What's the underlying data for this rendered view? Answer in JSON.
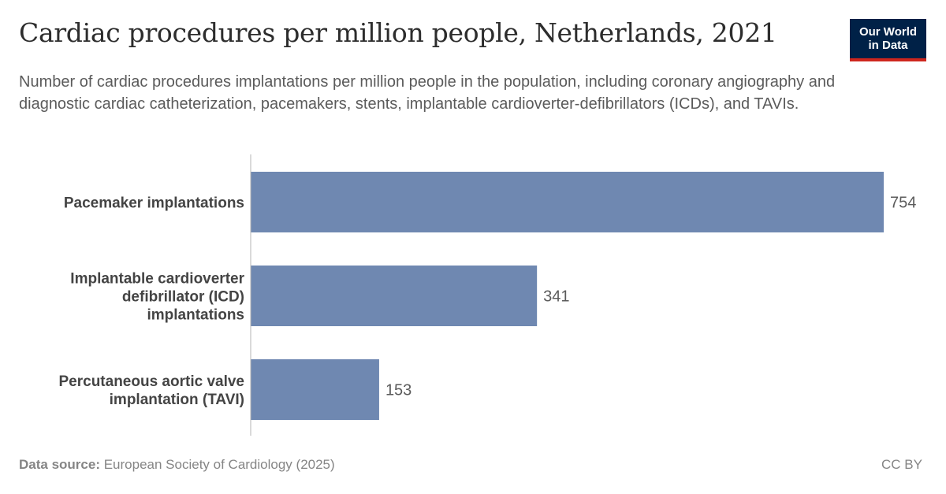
{
  "header": {
    "title": "Cardiac procedures per million people, Netherlands, 2021",
    "subtitle": "Number of cardiac procedures implantations per million people in the population, including coronary angiography and diagnostic cardiac catheterization, pacemakers, stents, implantable cardioverter-defibrillators (ICDs), and TAVIs.",
    "logo_line1": "Our World",
    "logo_line2": "in Data"
  },
  "footer": {
    "source_label": "Data source:",
    "source_text": "European Society of Cardiology (2025)",
    "license": "CC BY"
  },
  "colors": {
    "bar": "#6f88b1",
    "axis": "#b5b5b5",
    "label": "#444444",
    "value": "#5b5b5b"
  },
  "chart_data": {
    "type": "bar",
    "orientation": "horizontal",
    "title": "Cardiac procedures per million people, Netherlands, 2021",
    "categories": [
      [
        "Pacemaker implantations"
      ],
      [
        "Implantable cardioverter",
        "defibrillator (ICD)",
        "implantations"
      ],
      [
        "Percutaneous aortic valve",
        "implantation (TAVI)"
      ]
    ],
    "values": [
      754,
      341,
      153
    ],
    "value_labels": [
      "754",
      "341",
      "153"
    ],
    "xlim": [
      0,
      754
    ]
  }
}
